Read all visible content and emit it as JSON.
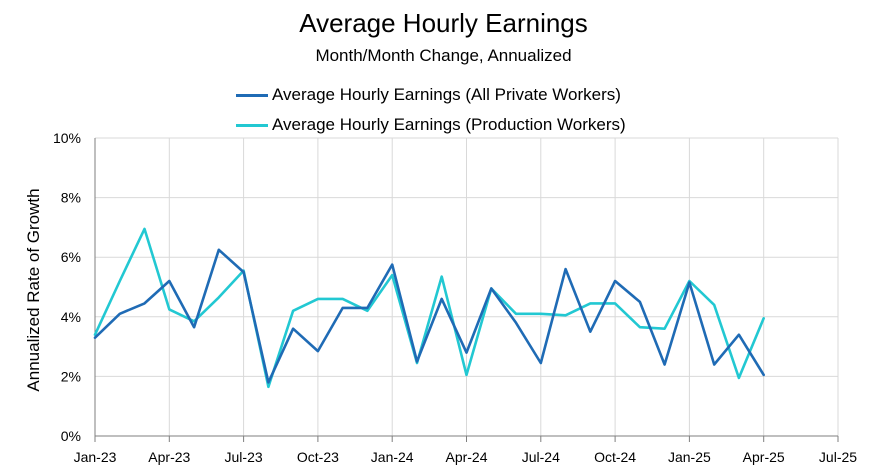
{
  "chart_data": {
    "type": "line",
    "title": "Average Hourly Earnings",
    "subtitle": "Month/Month Change, Annualized",
    "xlabel": "",
    "ylabel": "Annualized Rate of Growth",
    "x_tick_labels": [
      "Jan-23",
      "Apr-23",
      "Jul-23",
      "Oct-23",
      "Jan-24",
      "Apr-24",
      "Jul-24",
      "Oct-24",
      "Jan-25",
      "Apr-25",
      "Jul-25"
    ],
    "y_tick_labels": [
      "0%",
      "2%",
      "4%",
      "6%",
      "8%",
      "10%"
    ],
    "ylim": [
      0,
      10
    ],
    "x_months": 30,
    "grid": true,
    "series": [
      {
        "name": "Average Hourly Earnings (All Private Workers)",
        "color": "#1f6bb5",
        "values": [
          3.3,
          4.1,
          4.45,
          5.2,
          3.65,
          6.25,
          5.5,
          1.8,
          3.6,
          2.85,
          4.3,
          4.3,
          5.75,
          2.5,
          4.6,
          2.8,
          4.95,
          3.8,
          2.45,
          5.6,
          3.5,
          5.2,
          4.5,
          2.4,
          5.15,
          2.4,
          3.4,
          2.05
        ]
      },
      {
        "name": "Average Hourly Earnings (Production Workers)",
        "color": "#22c8d2",
        "values": [
          3.4,
          5.2,
          6.95,
          4.25,
          3.85,
          4.65,
          5.55,
          1.65,
          4.2,
          4.6,
          4.6,
          4.2,
          5.4,
          2.45,
          5.35,
          2.05,
          4.95,
          4.1,
          4.1,
          4.05,
          4.45,
          4.45,
          3.65,
          3.6,
          5.2,
          4.4,
          1.95,
          3.95
        ]
      }
    ]
  }
}
